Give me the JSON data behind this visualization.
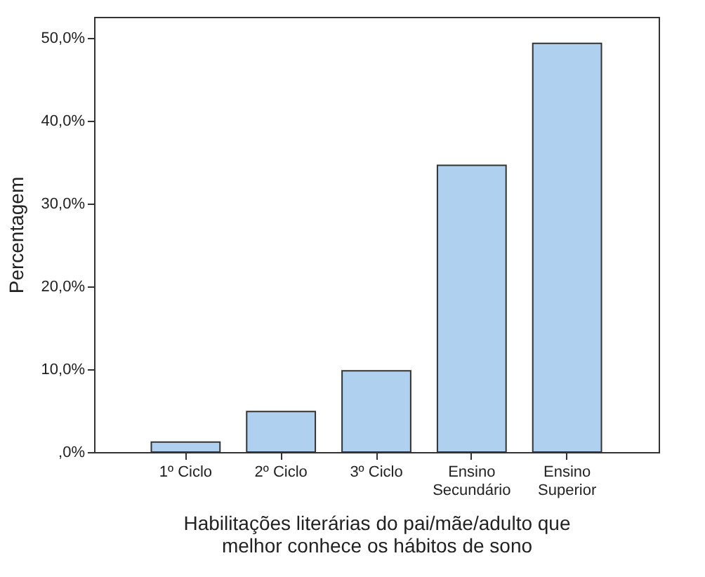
{
  "chart_data": {
    "type": "bar",
    "xlabel": "Habilitações literárias do pai/mãe/adulto que\nmelhor conhece os hábitos de sono",
    "ylabel": "Percentagem",
    "categories": [
      "1º Ciclo",
      "2º Ciclo",
      "3º Ciclo",
      "Ensino\nSecundário",
      "Ensino\nSuperior"
    ],
    "values": [
      1.2,
      4.9,
      9.8,
      34.6,
      49.3
    ],
    "color": "#afd0ee",
    "ylim": [
      0,
      52.5
    ],
    "yticks": [
      {
        "value": 0,
        "label": ",0%"
      },
      {
        "value": 10,
        "label": "10,0%"
      },
      {
        "value": 20,
        "label": "20,0%"
      },
      {
        "value": 30,
        "label": "30,0%"
      },
      {
        "value": 40,
        "label": "40,0%"
      },
      {
        "value": 50,
        "label": "50,0%"
      }
    ],
    "grid": false
  }
}
